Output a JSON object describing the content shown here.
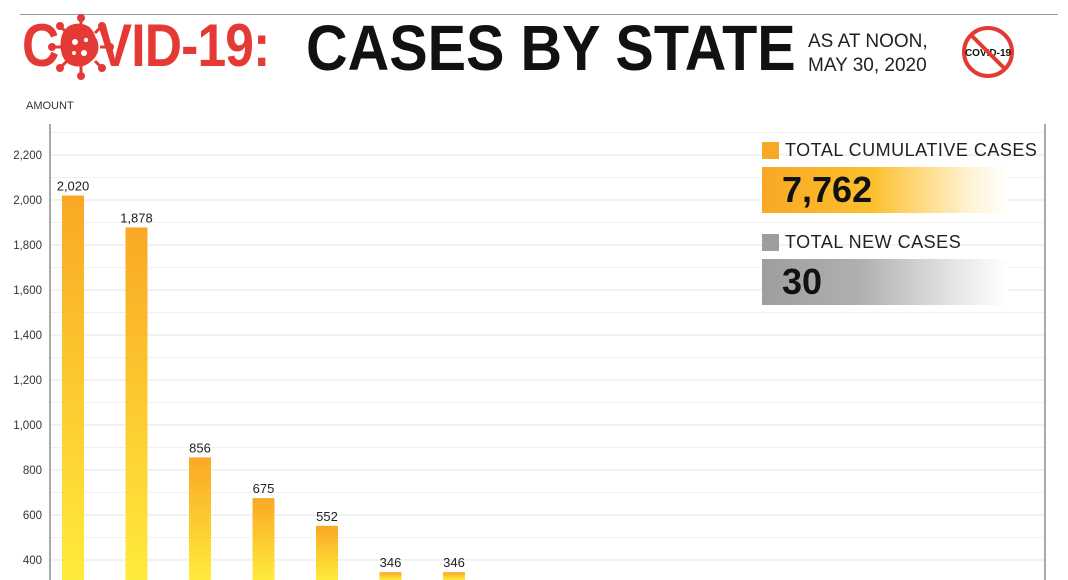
{
  "header": {
    "title_prefix": "COVID-19:",
    "title_main": "CASES BY STATE",
    "as_at_line1": "AS AT NOON,",
    "as_at_line2": "MAY 30, 2020",
    "icons": [
      "virus-icon",
      "no-covid-icon"
    ],
    "no_covid_icon_text": "COVID-19"
  },
  "colors": {
    "accent_red": "#e53935",
    "bar_top": "#f9a825",
    "bar_bottom": "#ffeb3b",
    "new_cases_grey": "#9e9e9e"
  },
  "summary": {
    "cumulative_label": "TOTAL CUMULATIVE CASES",
    "cumulative_value": "7,762",
    "new_label": "TOTAL NEW CASES",
    "new_value": "30"
  },
  "chart_data": {
    "type": "bar",
    "ylabel": "AMOUNT",
    "ylim": [
      300,
      2400
    ],
    "yticks": [
      400,
      600,
      800,
      1000,
      1200,
      1400,
      1600,
      1800,
      2000,
      2200
    ],
    "ytick_labels": [
      "400",
      "600",
      "800",
      "1,000",
      "1,200",
      "1,400",
      "1,600",
      "1,800",
      "2,000",
      "2,200"
    ],
    "grid": true,
    "values": [
      2020,
      1878,
      856,
      675,
      552,
      346,
      346
    ],
    "value_labels": [
      "2,020",
      "1,878",
      "856",
      "675",
      "552",
      "346",
      "346"
    ]
  }
}
